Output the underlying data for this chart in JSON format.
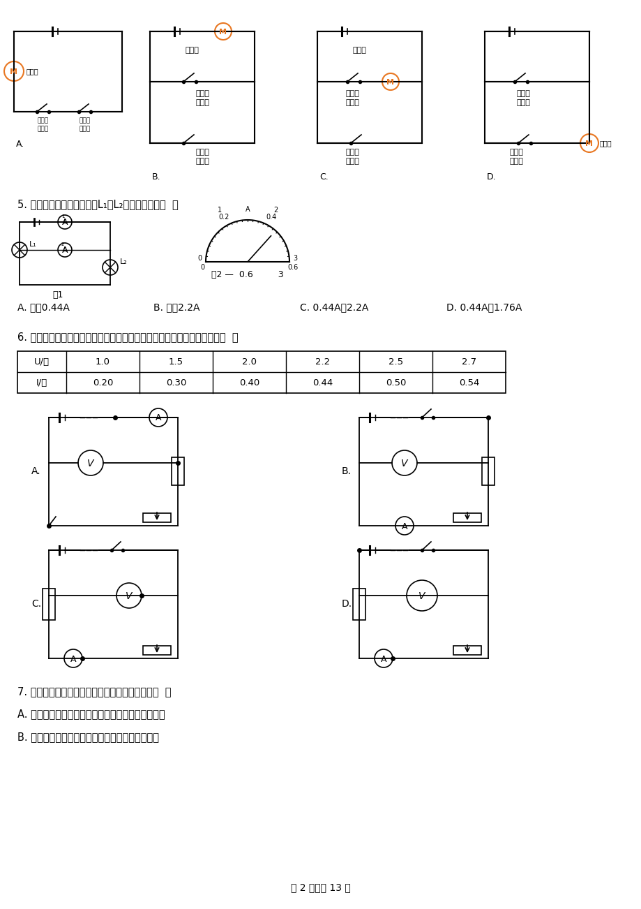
{
  "bg_color": "#ffffff",
  "q5_text": "5. 两表示数偏转都如图，则L₁和L₂的电流分别是（  ）",
  "q5_optA": "A. 都是0.44A",
  "q5_optB": "B. 都是2.2A",
  "q5_optC": "C. 0.44A、2.2A",
  "q5_optD": "D. 0.44A、1.76A",
  "q6_text": "6. 请根据下表给出的多组电压表和电流表的数据分析判断，该电路可能是（  ）",
  "table_headers": [
    "U/伏",
    "1.0",
    "1.5",
    "2.0",
    "2.2",
    "2.5",
    "2.7"
  ],
  "table_row2": [
    "I/安",
    "0.20",
    "0.30",
    "0.40",
    "0.44",
    "0.50",
    "0.54"
  ],
  "q7_text": "7. 下列关于电功、电功率的一些说法中正确的是（  ）",
  "q7_optA": "A. 通过用电器的电流做功越多，则用电器功率就越大",
  "q7_optB": "B. 用电器消耗的电功率越小，则电流做的功就越少",
  "page_footer": "第 2 页，共 13 页",
  "motor_color": "#E87722"
}
